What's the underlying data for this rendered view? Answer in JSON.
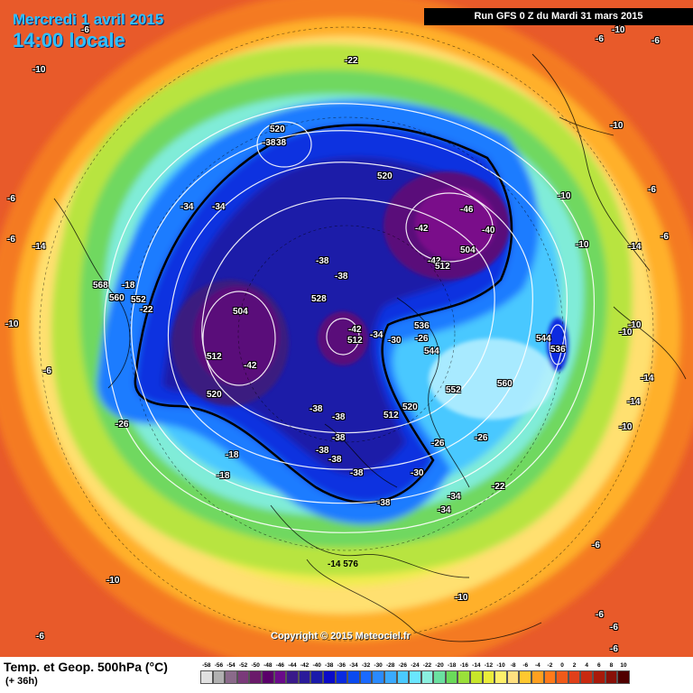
{
  "header": {
    "date": "Mercredi 1 avril 2015",
    "time": "14:00 locale",
    "run": "Run GFS 0 Z du Mardi 31 mars 2015"
  },
  "footer": {
    "product": "Temp. et Geop. 500hPa (°C)",
    "offset": "(+ 36h)",
    "copyright": "Copyright © 2015 Meteociel.fr"
  },
  "legend": {
    "ticks": [
      "-58",
      "-56",
      "-54",
      "-52",
      "-50",
      "-48",
      "-46",
      "-44",
      "-42",
      "-40",
      "-38",
      "-36",
      "-34",
      "-32",
      "-30",
      "-28",
      "-26",
      "-24",
      "-22",
      "-20",
      "-18",
      "-16",
      "-14",
      "-12",
      "-10",
      "-8",
      "-6",
      "-4",
      "-2",
      "0",
      "2",
      "4",
      "6",
      "8",
      "10"
    ],
    "colors": [
      "#e0e0e0",
      "#b0b0b0",
      "#8a6a8a",
      "#7a3a7a",
      "#6a1a6a",
      "#5a006a",
      "#6a0a8a",
      "#3a1a8a",
      "#2a1a9a",
      "#1a1aaa",
      "#0a0ac8",
      "#0a2ae0",
      "#0a4af0",
      "#1a6aff",
      "#2a8aff",
      "#3aaaff",
      "#4acaff",
      "#6ae6ff",
      "#8af0e0",
      "#6ae0a0",
      "#6ada5a",
      "#9ae03a",
      "#c8e62a",
      "#eaec3a",
      "#fff06a",
      "#ffe080",
      "#ffc830",
      "#ffa020",
      "#ff7a1a",
      "#f05a1a",
      "#e0401a",
      "#c82a10",
      "#a81a0a",
      "#881008",
      "#500000"
    ]
  },
  "map_labels": [
    {
      "text": "-10",
      "color": "white"
    },
    {
      "text": "-6",
      "color": "white"
    },
    {
      "text": "-22",
      "color": "white"
    },
    {
      "text": "-6",
      "color": "white"
    },
    {
      "text": "-10",
      "color": "white"
    },
    {
      "text": "520",
      "color": "white"
    },
    {
      "text": "-38",
      "color": "white"
    },
    {
      "text": "38",
      "color": "white"
    },
    {
      "text": "-34",
      "color": "white"
    },
    {
      "text": "-34",
      "color": "white"
    },
    {
      "text": "520",
      "color": "white"
    },
    {
      "text": "-46",
      "color": "white"
    },
    {
      "text": "-42",
      "color": "white"
    },
    {
      "text": "-42",
      "color": "white"
    },
    {
      "text": "504",
      "color": "white"
    },
    {
      "text": "-40",
      "color": "white"
    },
    {
      "text": "512",
      "color": "white"
    },
    {
      "text": "-38",
      "color": "white"
    },
    {
      "text": "-38",
      "color": "white"
    },
    {
      "text": "528",
      "color": "white"
    },
    {
      "text": "504",
      "color": "white"
    },
    {
      "text": "-42",
      "color": "white"
    },
    {
      "text": "512",
      "color": "white"
    },
    {
      "text": "512",
      "color": "white"
    },
    {
      "text": "-42",
      "color": "white"
    },
    {
      "text": "-34",
      "color": "white"
    },
    {
      "text": "536",
      "color": "white"
    },
    {
      "text": "-30",
      "color": "white"
    },
    {
      "text": "-26",
      "color": "white"
    },
    {
      "text": "544",
      "color": "white"
    },
    {
      "text": "552",
      "color": "white"
    },
    {
      "text": "560",
      "color": "white"
    },
    {
      "text": "520",
      "color": "white"
    },
    {
      "text": "-38",
      "color": "white"
    },
    {
      "text": "-38",
      "color": "white"
    },
    {
      "text": "-38",
      "color": "white"
    },
    {
      "text": "512",
      "color": "white"
    },
    {
      "text": "520",
      "color": "white"
    },
    {
      "text": "-38",
      "color": "white"
    },
    {
      "text": "-38",
      "color": "white"
    },
    {
      "text": "-26",
      "color": "white"
    },
    {
      "text": "-26",
      "color": "white"
    },
    {
      "text": "-38",
      "color": "white"
    },
    {
      "text": "-30",
      "color": "white"
    },
    {
      "text": "-34",
      "color": "white"
    },
    {
      "text": "-38",
      "color": "white"
    },
    {
      "text": "-34",
      "color": "white"
    },
    {
      "text": "-22",
      "color": "white"
    },
    {
      "text": "544",
      "color": "white"
    },
    {
      "text": "536",
      "color": "white"
    },
    {
      "text": "-26",
      "color": "white"
    },
    {
      "text": "-18",
      "color": "white"
    },
    {
      "text": "-18",
      "color": "white"
    },
    {
      "text": "568",
      "color": "white"
    },
    {
      "text": "560",
      "color": "white"
    },
    {
      "text": "552",
      "color": "white"
    },
    {
      "text": "-18",
      "color": "white"
    },
    {
      "text": "-22",
      "color": "white"
    },
    {
      "text": "-14",
      "color": "white"
    },
    {
      "text": "-10",
      "color": "white"
    },
    {
      "text": "-6",
      "color": "white"
    },
    {
      "text": "-10",
      "color": "white"
    },
    {
      "text": "-14",
      "color": "white"
    },
    {
      "text": "-10",
      "color": "white"
    },
    {
      "text": "-10",
      "color": "white"
    },
    {
      "text": "-6",
      "color": "white"
    },
    {
      "text": "-6",
      "color": "white"
    },
    {
      "text": "-10",
      "color": "white"
    },
    {
      "text": "-14",
      "color": "white"
    },
    {
      "text": "-14",
      "color": "white"
    },
    {
      "text": "-10",
      "color": "white"
    },
    {
      "text": "-6",
      "color": "white"
    },
    {
      "text": "-6",
      "color": "white"
    },
    {
      "text": "-6",
      "color": "white"
    },
    {
      "text": "-6",
      "color": "white"
    },
    {
      "text": "-10",
      "color": "white"
    },
    {
      "text": "-6",
      "color": "white"
    },
    {
      "text": "-14 576",
      "color": "white"
    },
    {
      "text": "-10",
      "color": "white"
    },
    {
      "text": "-6",
      "color": "white"
    },
    {
      "text": "-6",
      "color": "white"
    },
    {
      "text": "-6",
      "color": "white"
    },
    {
      "text": "-10",
      "color": "white"
    }
  ]
}
